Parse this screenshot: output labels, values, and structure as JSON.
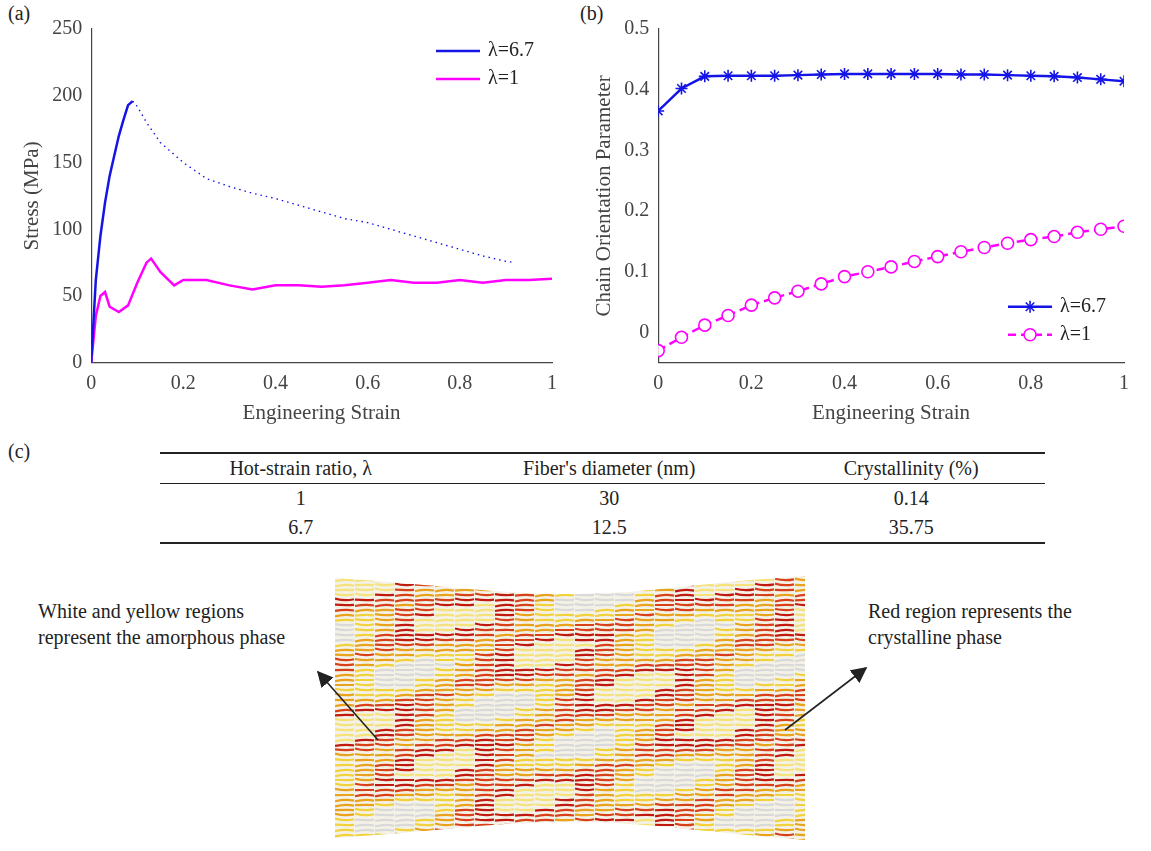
{
  "chart_data": [
    {
      "type": "line",
      "panel_label": "(a)",
      "x_label": "Engineering Strain",
      "y_label": "Stress (MPa)",
      "xlim": [
        0,
        1
      ],
      "xticks": [
        0,
        0.2,
        0.4,
        0.6,
        0.8,
        1
      ],
      "ylim": [
        0,
        250
      ],
      "yticks": [
        0,
        50,
        100,
        150,
        200,
        250
      ],
      "grid": false,
      "legend": "upper right",
      "series": [
        {
          "name": "λ=6.7",
          "color": "#1414e6",
          "marker": "none",
          "line_style": "solid",
          "x": [
            0,
            0.01,
            0.02,
            0.03,
            0.04,
            0.05,
            0.06,
            0.07,
            0.08,
            0.09
          ],
          "values": [
            0,
            62,
            95,
            120,
            140,
            155,
            170,
            182,
            193,
            196
          ]
        },
        {
          "name": "λ=6.7",
          "color": "#1414e6",
          "marker": "none",
          "line_style": "dotted",
          "x": [
            0.09,
            0.1,
            0.12,
            0.15,
            0.2,
            0.25,
            0.3,
            0.35,
            0.4,
            0.45,
            0.5,
            0.55,
            0.6,
            0.65,
            0.7,
            0.75,
            0.8,
            0.85,
            0.9,
            0.92
          ],
          "values": [
            196,
            192,
            180,
            165,
            150,
            138,
            132,
            127,
            123,
            118,
            113,
            108,
            105,
            100,
            95,
            90,
            85,
            80,
            76,
            75
          ]
        },
        {
          "name": "λ=1",
          "color": "#ff00ff",
          "marker": "none",
          "line_style": "solid",
          "x": [
            0,
            0.01,
            0.02,
            0.03,
            0.04,
            0.06,
            0.08,
            0.1,
            0.12,
            0.13,
            0.15,
            0.18,
            0.2,
            0.25,
            0.3,
            0.35,
            0.4,
            0.45,
            0.5,
            0.55,
            0.6,
            0.65,
            0.7,
            0.75,
            0.8,
            0.85,
            0.9,
            0.95,
            1
          ],
          "values": [
            0,
            35,
            50,
            53,
            42,
            38,
            43,
            60,
            75,
            78,
            68,
            58,
            62,
            62,
            58,
            55,
            58,
            58,
            57,
            58,
            60,
            62,
            60,
            60,
            62,
            60,
            62,
            62,
            63
          ]
        }
      ]
    },
    {
      "type": "line",
      "panel_label": "(b)",
      "x_label": "Engineering Strain",
      "y_label": "Chain Orientation Parameter",
      "xlim": [
        0,
        1
      ],
      "xticks": [
        0,
        0.2,
        0.4,
        0.6,
        0.8,
        1
      ],
      "ylim": [
        -0.05,
        0.5
      ],
      "yticks": [
        0,
        0.1,
        0.2,
        0.3,
        0.4,
        0.5
      ],
      "grid": false,
      "legend": "lower right",
      "series": [
        {
          "name": "λ=6.7",
          "color": "#1414e6",
          "marker": "star",
          "line_style": "solid",
          "x": [
            0,
            0.05,
            0.1,
            0.15,
            0.2,
            0.25,
            0.3,
            0.35,
            0.4,
            0.45,
            0.5,
            0.55,
            0.6,
            0.65,
            0.7,
            0.75,
            0.8,
            0.85,
            0.9,
            0.95,
            1
          ],
          "values": [
            0.365,
            0.402,
            0.422,
            0.423,
            0.423,
            0.423,
            0.424,
            0.425,
            0.426,
            0.426,
            0.426,
            0.426,
            0.426,
            0.425,
            0.425,
            0.424,
            0.423,
            0.422,
            0.42,
            0.417,
            0.414
          ]
        },
        {
          "name": "λ=1",
          "color": "#ff00ff",
          "marker": "circle",
          "line_style": "dashed",
          "x": [
            0,
            0.05,
            0.1,
            0.15,
            0.2,
            0.25,
            0.3,
            0.35,
            0.4,
            0.45,
            0.5,
            0.55,
            0.6,
            0.65,
            0.7,
            0.75,
            0.8,
            0.85,
            0.9,
            0.95,
            1
          ],
          "values": [
            -0.03,
            -0.008,
            0.012,
            0.028,
            0.045,
            0.057,
            0.068,
            0.08,
            0.092,
            0.1,
            0.108,
            0.117,
            0.125,
            0.133,
            0.14,
            0.147,
            0.153,
            0.158,
            0.165,
            0.17,
            0.175
          ]
        }
      ]
    }
  ],
  "table": {
    "panel_label": "(c)",
    "columns": [
      "Hot-strain ratio,  λ",
      "Fiber's diameter (nm)",
      "Crystallinity (%)"
    ],
    "rows": [
      [
        "1",
        "30",
        "0.14"
      ],
      [
        "6.7",
        "12.5",
        "35.75"
      ]
    ]
  },
  "image_annotations": {
    "left": "White and yellow regions represent the amorphous phase",
    "right": "Red region represents the crystalline phase"
  }
}
